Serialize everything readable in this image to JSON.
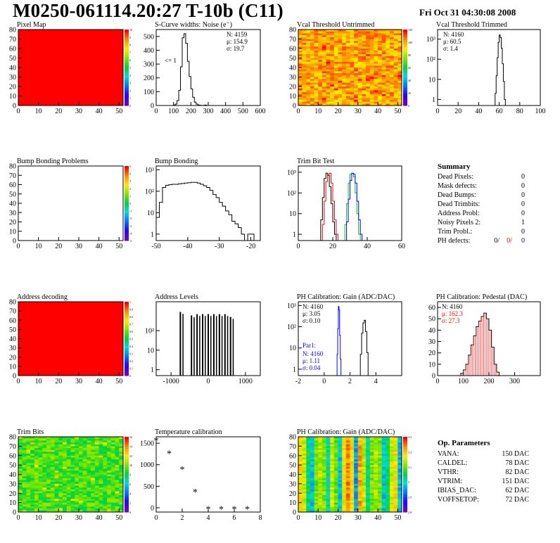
{
  "page_title": "M0250-061114.20:27 T-10b (C11)",
  "date": "Fri Oct 31 04:30:08 2008",
  "colors": {
    "red": "#ff0000",
    "green": "#00cc00",
    "blue": "#0000ff",
    "black": "#000000"
  },
  "chart_data": [
    {
      "id": "pixel-map",
      "type": "heatmap",
      "title": "Pixel Map",
      "xlim": [
        0,
        52
      ],
      "ylim": [
        0,
        80
      ],
      "xticks": [
        "0",
        "10",
        "20",
        "30",
        "40",
        "50"
      ],
      "yticks": [
        "0",
        "10",
        "20",
        "30",
        "40",
        "50",
        "60",
        "70",
        "80"
      ],
      "fill": "uniform-red",
      "colorbar": [
        "0",
        "1",
        "2",
        "3",
        "4",
        "5",
        "6",
        "7",
        "8",
        "9",
        "10"
      ]
    },
    {
      "id": "scurve",
      "type": "line",
      "title": "S-Curve widths: Noise (e⁻)",
      "xlim": [
        0,
        600
      ],
      "ylim": [
        0,
        550
      ],
      "xticks": [
        "0",
        "100",
        "200",
        "300",
        "400",
        "500",
        "600"
      ],
      "yticks": [
        "0",
        "100",
        "200",
        "300",
        "400",
        "500"
      ],
      "stats": [
        "N: 4159",
        "μ: 154.9",
        "σ: 19.7"
      ],
      "annotation": "<= 1",
      "x": [
        90,
        100,
        110,
        120,
        130,
        140,
        150,
        160,
        170,
        180,
        190,
        200,
        210,
        220,
        230,
        240,
        250,
        260,
        270,
        280,
        290
      ],
      "y": [
        0,
        3,
        10,
        35,
        110,
        280,
        490,
        520,
        450,
        320,
        210,
        120,
        60,
        25,
        10,
        4,
        2,
        0,
        1,
        3,
        0
      ]
    },
    {
      "id": "vcal-untrimmed",
      "type": "heatmap",
      "title": "Vcal Threshold Untrimmed",
      "xlim": [
        0,
        52
      ],
      "ylim": [
        0,
        80
      ],
      "xticks": [
        "0",
        "10",
        "20",
        "30",
        "40",
        "50"
      ],
      "yticks": [
        "0",
        "10",
        "20",
        "30",
        "40",
        "50",
        "60",
        "70",
        "80"
      ],
      "fill": "noisy-yellow-orange",
      "colorbar": [
        "0",
        "20",
        "40",
        "60",
        "80",
        "100",
        "120"
      ]
    },
    {
      "id": "vcal-trimmed",
      "type": "line",
      "title": "Vcal Threshold Trimmed",
      "xlim": [
        0,
        100
      ],
      "log_y": true,
      "ylim": [
        0.5,
        3000
      ],
      "xticks": [
        "0",
        "20",
        "40",
        "60",
        "80",
        "100"
      ],
      "yticks": [
        "1",
        "10",
        "10²",
        "10³"
      ],
      "stats": [
        "N: 4160",
        "μ: 60.5",
        "σ: 1.4"
      ],
      "x": [
        55,
        56,
        57,
        58,
        59,
        60,
        61,
        62,
        63,
        64,
        65,
        66
      ],
      "y": [
        0.5,
        2,
        15,
        120,
        700,
        1600,
        1200,
        350,
        60,
        8,
        1,
        0.5
      ]
    },
    {
      "id": "bump-problems",
      "type": "heatmap",
      "title": "Bump Bonding Problems",
      "xlim": [
        0,
        52
      ],
      "ylim": [
        0,
        80
      ],
      "xticks": [
        "0",
        "10",
        "20",
        "30",
        "40",
        "50"
      ],
      "yticks": [
        "0",
        "10",
        "20",
        "30",
        "40",
        "50",
        "60",
        "70",
        "80"
      ],
      "fill": "empty",
      "colorbar": [
        "-5",
        "-4",
        "-3",
        "-2",
        "-1",
        "0",
        "1",
        "2",
        "3",
        "4",
        "5"
      ]
    },
    {
      "id": "bump-bonding",
      "type": "line",
      "title": "Bump Bonding",
      "xlim": [
        -50,
        -17
      ],
      "log_y": true,
      "ylim": [
        0.5,
        1500
      ],
      "xticks": [
        "-50",
        "-40",
        "-30",
        "-20"
      ],
      "yticks": [
        "1",
        "10",
        "10²",
        "10³"
      ],
      "x": [
        -50,
        -49,
        -48,
        -47,
        -46,
        -45,
        -44,
        -43,
        -42,
        -41,
        -40,
        -39,
        -38,
        -37,
        -36,
        -35,
        -34,
        -33,
        -32,
        -31,
        -30,
        -29,
        -28,
        -27,
        -26,
        -25,
        -24,
        -23,
        -22,
        -21,
        -20,
        -19
      ],
      "y": [
        6,
        30,
        150,
        190,
        200,
        210,
        210,
        220,
        230,
        240,
        250,
        260,
        260,
        240,
        210,
        180,
        150,
        110,
        70,
        50,
        30,
        20,
        12,
        8,
        4,
        3,
        2,
        1,
        0.5,
        1,
        1,
        0.5
      ]
    },
    {
      "id": "trim-bit-test",
      "type": "line",
      "title": "Trim Bit Test",
      "xlim": [
        0,
        60
      ],
      "log_y": true,
      "ylim": [
        0.5,
        2000
      ],
      "xticks": [
        "0",
        "20",
        "40",
        "60"
      ],
      "yticks": [
        "1",
        "10",
        "10²",
        "10³"
      ],
      "series": [
        {
          "color": "black",
          "x": [
            12,
            13,
            14,
            15,
            16,
            17,
            18,
            19,
            20,
            21,
            22
          ],
          "y": [
            0.5,
            5,
            60,
            500,
            900,
            700,
            200,
            30,
            4,
            1,
            0.5
          ]
        },
        {
          "color": "red",
          "x": [
            13,
            14,
            15,
            16,
            17,
            18,
            19,
            20,
            21,
            22,
            23
          ],
          "y": [
            0.5,
            3,
            40,
            350,
            800,
            900,
            300,
            40,
            5,
            1,
            0.5
          ]
        },
        {
          "color": "green",
          "x": [
            26,
            27,
            28,
            29,
            30,
            31,
            32,
            33,
            34,
            35,
            36
          ],
          "y": [
            0.5,
            3,
            30,
            300,
            800,
            900,
            600,
            100,
            10,
            1,
            0.5
          ]
        },
        {
          "color": "blue",
          "x": [
            27,
            28,
            29,
            30,
            31,
            32,
            33,
            34,
            35,
            36,
            37
          ],
          "y": [
            0.5,
            4,
            50,
            400,
            900,
            800,
            300,
            40,
            5,
            1,
            0.5
          ]
        }
      ]
    },
    {
      "id": "address-decoding",
      "type": "heatmap",
      "title": "Address decoding",
      "xlim": [
        0,
        52
      ],
      "ylim": [
        0,
        80
      ],
      "xticks": [
        "0",
        "10",
        "20",
        "30",
        "40",
        "50"
      ],
      "yticks": [
        "0",
        "10",
        "20",
        "30",
        "40",
        "50",
        "60",
        "70",
        "80"
      ],
      "fill": "uniform-red",
      "colorbar": [
        "0",
        "0.1",
        "0.2",
        "0.3",
        "0.4",
        "0.5",
        "0.6",
        "0.7",
        "0.8",
        "0.9",
        "1"
      ]
    },
    {
      "id": "address-levels",
      "type": "bar",
      "title": "Address Levels",
      "xlim": [
        -1400,
        1400
      ],
      "log_y": true,
      "ylim": [
        0.5,
        3000
      ],
      "xticks": [
        "-1000",
        "0",
        "1000"
      ],
      "yticks": [
        "1",
        "10",
        "10²"
      ],
      "x": [
        -750,
        -450,
        -300,
        -150,
        0,
        150,
        300,
        450,
        600
      ],
      "y": [
        900,
        600,
        700,
        700,
        700,
        700,
        700,
        700,
        500
      ]
    },
    {
      "id": "ph-gain",
      "type": "line",
      "title": "PH Calibration: Gain (ADC/DAC)",
      "xlim": [
        -2,
        6
      ],
      "log_y": true,
      "ylim": [
        0.5,
        1500
      ],
      "xticks": [
        "-2",
        "0",
        "2",
        "4"
      ],
      "yticks": [
        "1",
        "10",
        "10²",
        "10³"
      ],
      "stats": [
        "N: 4160",
        "μ: 3.05",
        "σ: 0.10"
      ],
      "stats2_label": "Par1:",
      "stats2": [
        "N: 4160",
        "μ: 1.11",
        "σ: 0.04"
      ],
      "series": [
        {
          "color": "black",
          "x": [
            2.7,
            2.8,
            2.9,
            3.0,
            3.1,
            3.2,
            3.3,
            3.4
          ],
          "y": [
            0.5,
            5,
            50,
            150,
            200,
            60,
            6,
            0.5
          ]
        },
        {
          "color": "blue",
          "x": [
            0.95,
            1.0,
            1.05,
            1.1,
            1.15,
            1.2,
            1.25,
            1.3
          ],
          "y": [
            0.5,
            5,
            80,
            900,
            600,
            40,
            3,
            0.5
          ]
        }
      ]
    },
    {
      "id": "ph-pedestal",
      "type": "line",
      "title": "PH Calibration: Pedestal (DAC)",
      "xlim": [
        0,
        400
      ],
      "ylim": [
        0,
        65
      ],
      "xticks": [
        "0",
        "100",
        "200",
        "300"
      ],
      "yticks": [
        "0",
        "10",
        "20",
        "30",
        "40",
        "50",
        "60"
      ],
      "stats": [
        "N: 4160"
      ],
      "stats_red": [
        "μ: 162.3",
        "σ: 27.3"
      ],
      "x": [
        80,
        90,
        100,
        110,
        120,
        130,
        140,
        150,
        160,
        170,
        180,
        190,
        200,
        210,
        220,
        230,
        240
      ],
      "y": [
        0,
        2,
        5,
        10,
        18,
        27,
        35,
        43,
        48,
        52,
        55,
        50,
        40,
        25,
        10,
        3,
        0
      ]
    },
    {
      "id": "trim-bits",
      "type": "heatmap",
      "title": "Trim Bits",
      "xlim": [
        0,
        52
      ],
      "ylim": [
        0,
        80
      ],
      "xticks": [
        "0",
        "10",
        "20",
        "30",
        "40",
        "50"
      ],
      "yticks": [
        "0",
        "10",
        "20",
        "30",
        "40",
        "50",
        "60",
        "70",
        "80"
      ],
      "fill": "noisy-green",
      "colorbar": [
        "0",
        "2",
        "4",
        "6",
        "8",
        "10",
        "12",
        "14",
        "16"
      ]
    },
    {
      "id": "temperature",
      "type": "scatter",
      "title": "Temperature calibration",
      "xlim": [
        0,
        8
      ],
      "ylim": [
        -100,
        1650
      ],
      "xticks": [
        "0",
        "2",
        "4",
        "6",
        "8"
      ],
      "yticks": [
        "0",
        "500",
        "1000",
        "1500"
      ],
      "x": [
        0,
        1,
        2,
        3,
        4,
        5,
        6,
        7
      ],
      "y": [
        1550,
        1250,
        880,
        360,
        -40,
        -40,
        -40,
        -40
      ]
    },
    {
      "id": "ph-gain-map",
      "type": "heatmap",
      "title": "PH Calibration: Gain (ADC/DAC)",
      "xlim": [
        0,
        52
      ],
      "ylim": [
        0,
        80
      ],
      "xticks": [
        "0",
        "10",
        "20",
        "30",
        "40",
        "50"
      ],
      "yticks": [
        "0",
        "10",
        "20",
        "30",
        "40",
        "50",
        "60",
        "70",
        "80"
      ],
      "fill": "striped-gain",
      "colorbar": [
        "2.8",
        "2.9",
        "3",
        "3.1",
        "3.2",
        "3.3"
      ]
    }
  ],
  "summary": {
    "title": "Summary",
    "rows": [
      {
        "label": "Dead Pixels:",
        "value": "0"
      },
      {
        "label": "Mask defects:",
        "value": "0"
      },
      {
        "label": "Dead Bumps:",
        "value": "0"
      },
      {
        "label": "Dead Trimbits:",
        "value": "0"
      },
      {
        "label": "Address Probl:",
        "value": "0"
      },
      {
        "label": "Noisy Pixels 2:",
        "value": "1"
      },
      {
        "label": "Trim Probl.:",
        "value": "0"
      }
    ],
    "ph_defects": {
      "label": "PH defects:",
      "black": "0/",
      "red": "0/",
      "blue": "0"
    }
  },
  "op_params": {
    "title": "Op. Parameters",
    "rows": [
      {
        "label": "VANA:",
        "value": "150 DAC"
      },
      {
        "label": "CALDEL:",
        "value": "78 DAC"
      },
      {
        "label": "VTHR:",
        "value": "82 DAC"
      },
      {
        "label": "VTRIM:",
        "value": "151 DAC"
      },
      {
        "label": "IBIAS_DAC:",
        "value": "62 DAC"
      },
      {
        "label": "VOFFSETOP:",
        "value": "72 DAC"
      }
    ]
  }
}
